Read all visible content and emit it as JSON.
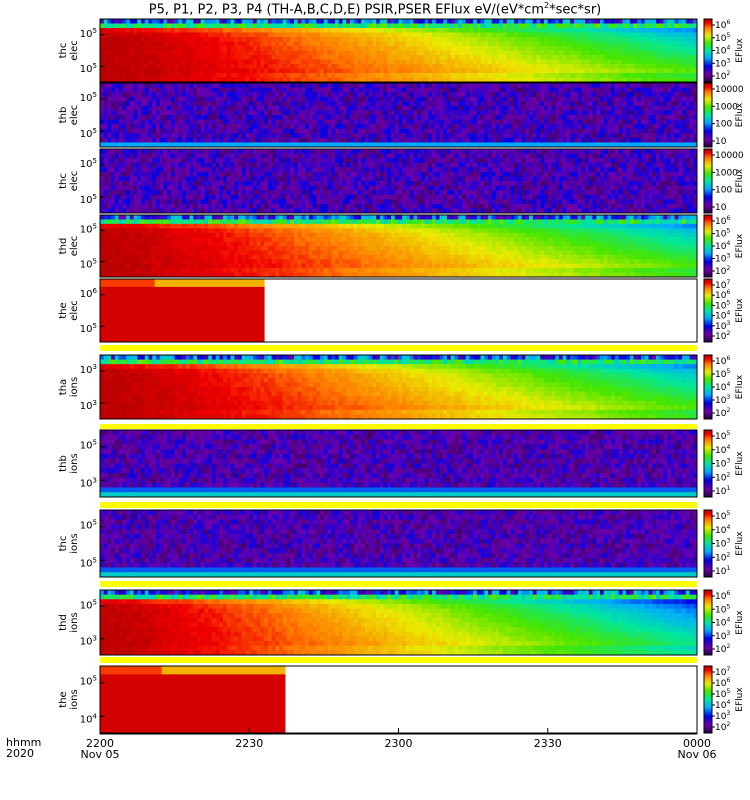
{
  "title": "P5, P1, P2, P3, P4 (TH-A,B,C,D,E) PSIR,PSER EFlux eV/(eV*cm",
  "title_sup": "2",
  "title_end": "*sec*sr)",
  "chart_data": {
    "type": "heatmap",
    "time_axis": {
      "row_label": "hhmm",
      "year": "2020",
      "ticks": [
        {
          "time": "2200",
          "date": "Nov 05"
        },
        {
          "time": "2230",
          "date": ""
        },
        {
          "time": "2300",
          "date": ""
        },
        {
          "time": "2330",
          "date": ""
        },
        {
          "time": "0000",
          "date": "Nov 06"
        }
      ]
    },
    "colorbar_label": "EFlux",
    "panels": [
      {
        "probe": "thc",
        "species": "elec",
        "ylabels": [
          "10^5",
          "10^5"
        ],
        "cbar_ticks": [
          "10^6",
          "10^5",
          "10^4",
          "10^3",
          "10^2"
        ],
        "coverage": 1.0,
        "kind": "hot"
      },
      {
        "probe": "thb",
        "species": "elec",
        "ylabels": [
          "10^5",
          "10^5"
        ],
        "cbar_ticks": [
          "10000",
          "1000",
          "100",
          "10"
        ],
        "coverage": 1.0,
        "kind": "noise_line"
      },
      {
        "probe": "thc",
        "species": "elec",
        "ylabels": [
          "10^5",
          "10^5"
        ],
        "cbar_ticks": [
          "10000",
          "1000",
          "100",
          "10"
        ],
        "coverage": 1.0,
        "kind": "noise"
      },
      {
        "probe": "thd",
        "species": "elec",
        "ylabels": [
          "10^5",
          "10^5"
        ],
        "cbar_ticks": [
          "10^6",
          "10^5",
          "10^4",
          "10^3",
          "10^2"
        ],
        "coverage": 1.0,
        "kind": "hot"
      },
      {
        "probe": "the",
        "species": "elec",
        "ylabels": [
          "10^6",
          "10^5"
        ],
        "cbar_ticks": [
          "10^7",
          "10^6",
          "10^5",
          "10^4",
          "10^3",
          "10^2"
        ],
        "coverage": 0.275,
        "kind": "sat"
      },
      {
        "probe": "tha",
        "species": "ions",
        "ylabels": [
          "10^3",
          "10^3"
        ],
        "cbar_ticks": [
          "10^6",
          "10^5",
          "10^4",
          "10^3",
          "10^2"
        ],
        "coverage": 1.0,
        "kind": "hot"
      },
      {
        "probe": "thb",
        "species": "ions",
        "ylabels": [
          "10^5",
          "10^3"
        ],
        "cbar_ticks": [
          "10^5",
          "10^4",
          "10^3",
          "10^2",
          "10^1"
        ],
        "coverage": 1.0,
        "kind": "ion_noise"
      },
      {
        "probe": "thc",
        "species": "ions",
        "ylabels": [
          "10^5",
          "10^5"
        ],
        "cbar_ticks": [
          "10^5",
          "10^4",
          "10^3",
          "10^2",
          "10^1"
        ],
        "coverage": 1.0,
        "kind": "ion_noise"
      },
      {
        "probe": "thd",
        "species": "ions",
        "ylabels": [
          "10^5",
          "10^3"
        ],
        "cbar_ticks": [
          "10^6",
          "10^5",
          "10^4",
          "10^3",
          "10^2"
        ],
        "coverage": 1.0,
        "kind": "hot_ions"
      },
      {
        "probe": "the",
        "species": "ions",
        "ylabels": [
          "10^5",
          "10^4"
        ],
        "cbar_ticks": [
          "10^7",
          "10^6",
          "10^5",
          "10^4",
          "10^3",
          "10^2"
        ],
        "coverage": 0.31,
        "kind": "sat"
      }
    ]
  }
}
